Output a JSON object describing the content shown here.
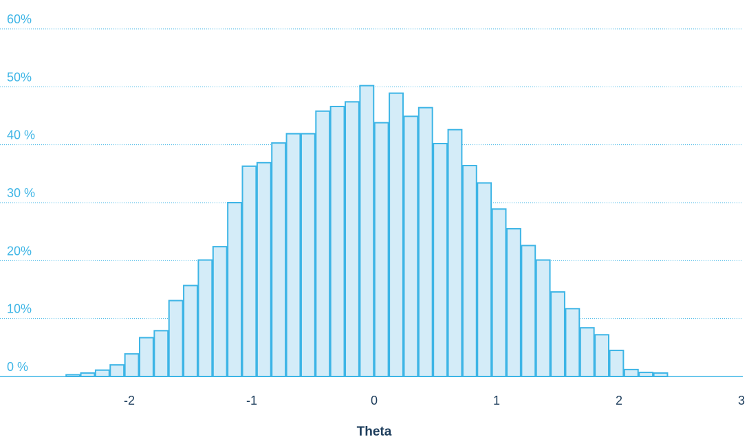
{
  "chart_data": {
    "type": "bar",
    "title": "",
    "xlabel": "Theta",
    "ylabel": "",
    "x_ticks": [
      "-2",
      "-1",
      "0",
      "1",
      "2",
      "3"
    ],
    "y_ticks": [
      "0 %",
      "10%",
      "20%",
      "30 %",
      "40 %",
      "50%",
      "60%"
    ],
    "xlim": [
      -3,
      3
    ],
    "ylim": [
      0,
      60
    ],
    "bin_width": 0.12,
    "bin_centers": [
      -2.46,
      -2.34,
      -2.22,
      -2.1,
      -1.98,
      -1.86,
      -1.74,
      -1.62,
      -1.5,
      -1.38,
      -1.26,
      -1.14,
      -1.02,
      -0.9,
      -0.78,
      -0.66,
      -0.54,
      -0.42,
      -0.3,
      -0.18,
      -0.06,
      0.06,
      0.18,
      0.3,
      0.42,
      0.54,
      0.66,
      0.78,
      0.9,
      1.02,
      1.14,
      1.26,
      1.38,
      1.5,
      1.62,
      1.74,
      1.86,
      1.98,
      2.1,
      2.22,
      2.34
    ],
    "values": [
      0.3,
      0.6,
      1.1,
      2.0,
      3.9,
      6.7,
      7.9,
      13.1,
      15.7,
      20.1,
      22.4,
      30.0,
      36.3,
      36.9,
      40.3,
      41.9,
      41.9,
      45.8,
      46.6,
      47.4,
      50.2,
      43.8,
      48.9,
      44.9,
      46.4,
      40.2,
      42.6,
      36.4,
      33.4,
      28.9,
      25.5,
      22.6,
      20.1,
      14.6,
      11.7,
      8.4,
      7.2,
      4.5,
      1.2,
      0.7,
      0.6
    ],
    "grid": true,
    "colors": {
      "bar_fill": "#d4ecf8",
      "bar_stroke": "#3db5e6",
      "grid": "#3db5e6",
      "tick_label": "#3db5e6",
      "axis_text": "#1d3d5c"
    }
  }
}
